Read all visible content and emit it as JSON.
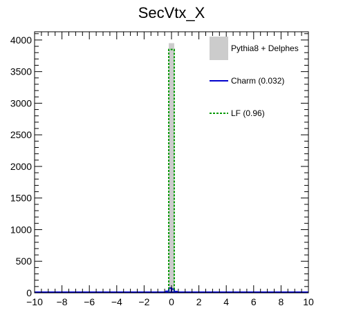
{
  "chart_data": {
    "type": "histogram",
    "title": "SecVtx_X",
    "xlabel": "",
    "ylabel": "",
    "xlim": [
      -10,
      10
    ],
    "ylim": [
      0,
      4130
    ],
    "xticks": [
      -10,
      -8,
      -6,
      -4,
      -2,
      0,
      2,
      4,
      6,
      8,
      10
    ],
    "xtick_labels": [
      "−10",
      "−8",
      "−6",
      "−4",
      "−2",
      "0",
      "2",
      "4",
      "6",
      "8",
      "10"
    ],
    "yticks": [
      0,
      500,
      1000,
      1500,
      2000,
      2500,
      3000,
      3500,
      4000
    ],
    "ytick_labels": [
      "0",
      "500",
      "1000",
      "1500",
      "2000",
      "2500",
      "3000",
      "3500",
      "4000"
    ],
    "grid": false,
    "legend_position": "top-right",
    "series": [
      {
        "name": "Pythia8 + Delphes",
        "style": "filled",
        "color": "#cccccc",
        "bins": [
          {
            "x0": -0.2,
            "x1": 0.2,
            "value": 3950
          }
        ]
      },
      {
        "name": "Charm (0.032)",
        "style": "solid",
        "color": "#0000cc",
        "bins": [
          {
            "x0": -0.4,
            "x1": -0.2,
            "value": 25
          },
          {
            "x0": -0.2,
            "x1": 0.0,
            "value": 75
          },
          {
            "x0": 0.0,
            "x1": 0.2,
            "value": 60
          },
          {
            "x0": 0.2,
            "x1": 0.4,
            "value": 20
          }
        ]
      },
      {
        "name": "LF (0.96)",
        "style": "dashed",
        "color": "#009900",
        "bins": [
          {
            "x0": -0.2,
            "x1": 0.2,
            "value": 3850
          }
        ]
      }
    ]
  }
}
